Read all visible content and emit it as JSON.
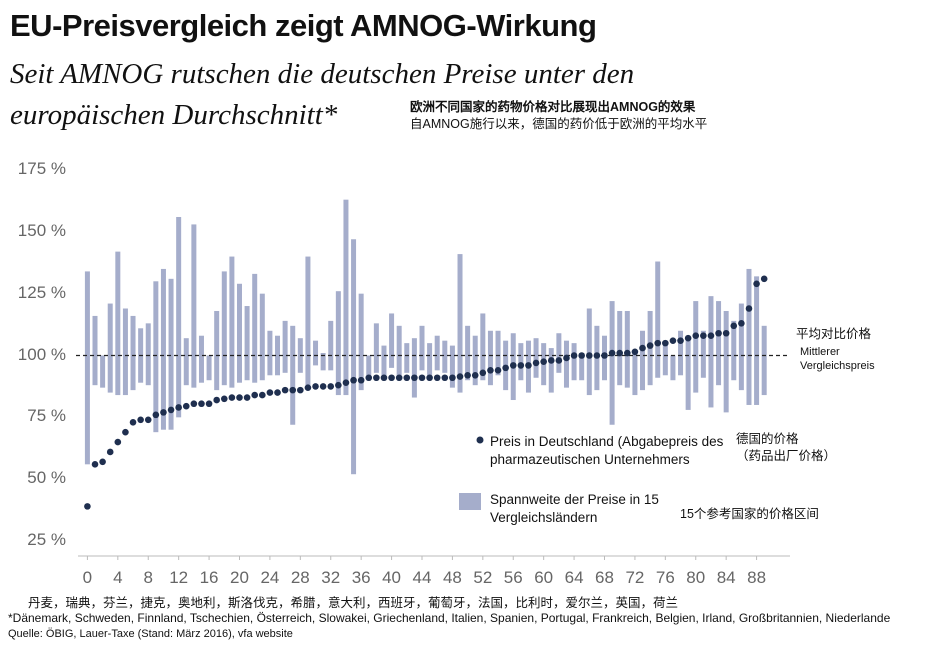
{
  "chart_data": {
    "type": "dot_range",
    "title": "EU-Preisvergleich zeigt AMNOG-Wirkung",
    "subtitle": "Seit AMNOG rutschen die deutschen Preise unter den europäischen Durchschnitt*",
    "annotations": [
      "欧洲不同国家的药物价格对比展现出AMNOG的效果",
      "自AMNOG施行以来，德国的药价低于欧洲的平均水平",
      "平均对比价格",
      "德国的价格",
      "（药品出厂价格）",
      "15个参考国家的价格区间"
    ],
    "countries": "丹麦，瑞典，芬兰，捷克，奥地利，斯洛伐克，希腊，意大利，西班牙，葡萄牙，法国，比利时，爱尔兰，英国，荷兰",
    "footnote": "*Dänemark, Schweden, Finnland, Tschechien, Österreich, Slowakei, Griechenland, Italien, Spanien, Portugal, Frankreich, Belgien, Irland, Großbritannien, Niederlande",
    "source": "Quelle: ÖBIG, Lauer-Taxe (Stand: März 2016), vfa website",
    "x": [
      0,
      1,
      2,
      3,
      4,
      5,
      6,
      7,
      8,
      9,
      10,
      11,
      12,
      13,
      14,
      15,
      16,
      17,
      18,
      19,
      20,
      21,
      22,
      23,
      24,
      25,
      26,
      27,
      28,
      29,
      30,
      31,
      32,
      33,
      34,
      35,
      36,
      37,
      38,
      39,
      40,
      41,
      42,
      43,
      44,
      45,
      46,
      47,
      48,
      49,
      50,
      51,
      52,
      53,
      54,
      55,
      56,
      57,
      58,
      59,
      60,
      61,
      62,
      63,
      64,
      65,
      66,
      67,
      68,
      69,
      70,
      71,
      72,
      73,
      74,
      75,
      76,
      77,
      78,
      79,
      80,
      81,
      82,
      83,
      84,
      85,
      86,
      87,
      88,
      89
    ],
    "series": [
      {
        "name": "Preis in Deutschland (Abgabepreis des pharmazeutischen Unternehmers",
        "color": "#1f2f4f",
        "values": [
          39,
          56,
          57,
          61,
          65,
          69,
          73,
          74,
          74,
          76,
          77,
          78,
          79,
          79.5,
          80.5,
          80.5,
          80.5,
          82,
          82.5,
          83,
          83,
          83,
          84,
          84,
          85,
          85,
          86,
          86,
          86,
          87,
          87.5,
          87.5,
          87.5,
          88,
          89,
          90,
          90,
          91,
          91,
          91,
          91,
          91,
          91,
          91,
          91,
          91,
          91,
          91,
          91,
          91.5,
          92,
          92,
          93,
          94,
          94,
          95,
          96,
          96,
          96,
          97,
          97.5,
          98,
          98,
          99,
          100,
          100,
          100,
          100,
          100,
          101,
          101,
          101,
          101.5,
          103,
          104,
          105,
          105,
          106,
          106,
          107,
          108,
          108,
          108,
          109,
          109,
          112,
          113,
          119,
          129,
          131
        ]
      }
    ],
    "range": {
      "name": "Spannweite der Preise in 15 Vergleichsländern",
      "color": "#a5adcb",
      "low": [
        56,
        88,
        87,
        85,
        84,
        84,
        86,
        89,
        88,
        69,
        70,
        70,
        75,
        88,
        87,
        89,
        90,
        86,
        88,
        87,
        89,
        90,
        89,
        90,
        92,
        92,
        93,
        72,
        93,
        88,
        96,
        94,
        94,
        84,
        84,
        52,
        86,
        92,
        93,
        92,
        95,
        92,
        93,
        83,
        94,
        92,
        94,
        93,
        87,
        85,
        90,
        88,
        90,
        88,
        92,
        86,
        82,
        90,
        85,
        91,
        88,
        85,
        93,
        87,
        90,
        90,
        84,
        86,
        90,
        72,
        88,
        87,
        84,
        86,
        88,
        91,
        92,
        90,
        92,
        78,
        85,
        91,
        79,
        88,
        77,
        90,
        86,
        80,
        80,
        84
      ],
      "high": [
        134,
        116,
        100,
        121,
        142,
        119,
        116,
        111,
        113,
        130,
        135,
        131,
        156,
        107,
        153,
        108,
        100,
        118,
        134,
        140,
        129,
        120,
        133,
        125,
        110,
        108,
        114,
        112,
        107,
        140,
        106,
        101,
        114,
        126,
        163,
        147,
        125,
        100,
        113,
        104,
        117,
        112,
        105,
        107,
        112,
        105,
        108,
        106,
        104,
        141,
        112,
        108,
        117,
        110,
        110,
        106,
        109,
        105,
        106,
        107,
        105,
        103,
        109,
        106,
        105,
        101,
        119,
        112,
        108,
        122,
        118,
        118,
        102,
        110,
        118,
        138,
        105,
        100,
        110,
        108,
        122,
        110,
        124,
        122,
        118,
        114,
        121,
        135,
        132,
        112
      ]
    },
    "reference_line": {
      "value": 100,
      "label": "Mittlerer Vergleichspreis",
      "color": "#222"
    },
    "xlim": [
      -1.5,
      92
    ],
    "xticks": [
      0,
      4,
      8,
      12,
      16,
      20,
      24,
      28,
      32,
      36,
      40,
      44,
      48,
      52,
      56,
      60,
      64,
      68,
      72,
      76,
      80,
      84,
      88
    ],
    "ylim": [
      25,
      175
    ],
    "yticks": [
      {
        "value": 25,
        "label": "25 %"
      },
      {
        "value": 50,
        "label": "50 %"
      },
      {
        "value": 75,
        "label": "75 %"
      },
      {
        "value": 100,
        "label": "100 %"
      },
      {
        "value": 125,
        "label": "125 %"
      },
      {
        "value": 150,
        "label": "150 %"
      },
      {
        "value": 175,
        "label": "175 %"
      }
    ],
    "grid": false
  }
}
